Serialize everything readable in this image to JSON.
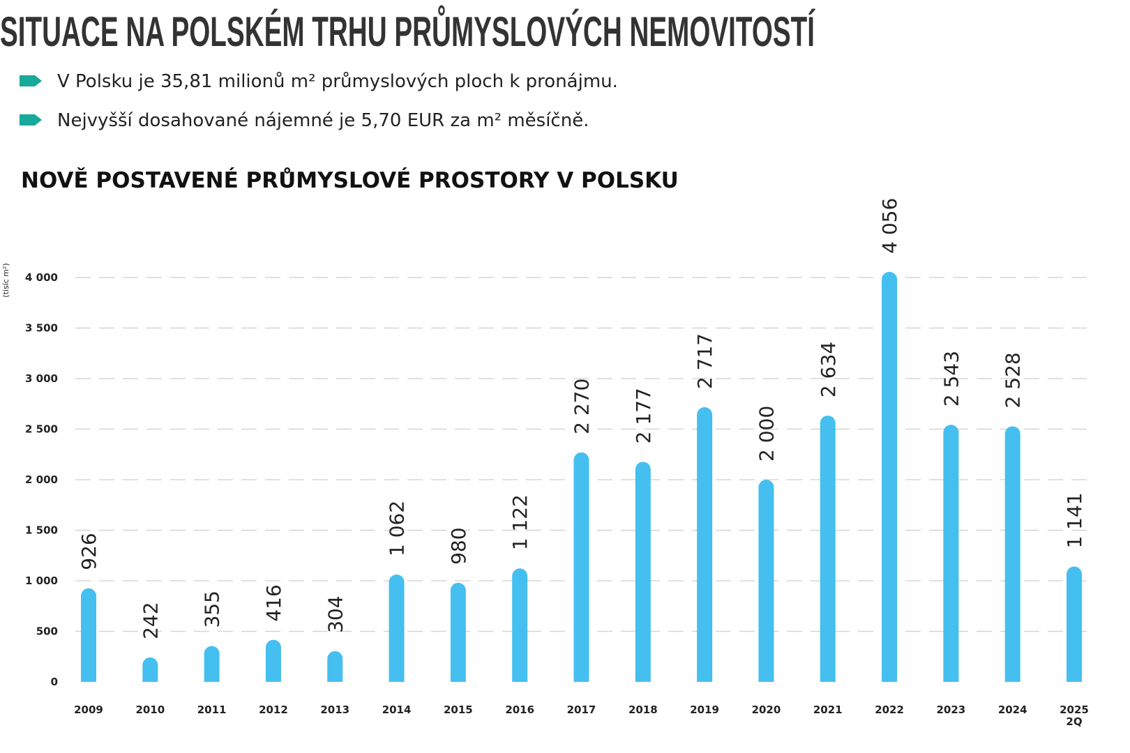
{
  "header": {
    "title": "SITUACE NA POLSKÉM TRHU PRŮMYSLOVÝCH NEMOVITOSTÍ",
    "bullets": [
      "V Polsku je 35,81 milionů m² průmyslových ploch k pronájmu.",
      "Nejvyšší dosahované nájemné je 5,70 EUR za m² měsíčně."
    ]
  },
  "chart_data": {
    "type": "bar",
    "title": "NOVĚ POSTAVENÉ PRŮMYSLOVÉ PROSTORY V POLSKU",
    "y_label": "(tisíc m²)",
    "categories": [
      "2009",
      "2010",
      "2011",
      "2012",
      "2013",
      "2014",
      "2015",
      "2016",
      "2017",
      "2018",
      "2019",
      "2020",
      "2021",
      "2022",
      "2023",
      "2024",
      "2025\n2Q"
    ],
    "values": [
      926,
      242,
      355,
      416,
      304,
      1062,
      980,
      1122,
      2270,
      2177,
      2717,
      2000,
      2634,
      4056,
      2543,
      2528,
      1141
    ],
    "value_labels": [
      "926",
      "242",
      "355",
      "416",
      "304",
      "1 062",
      "980",
      "1 122",
      "2 270",
      "2 177",
      "2 717",
      "2 000",
      "2 634",
      "4 056",
      "2 543",
      "2 528",
      "1 141"
    ],
    "color": "#45bfef",
    "ylim": [
      0,
      4000
    ],
    "yticks": [
      0,
      500,
      {
        "value": 1000,
        "label": "1 000"
      },
      {
        "value": 1500,
        "label": "1 500"
      },
      {
        "value": 2000,
        "label": "2 000"
      },
      {
        "value": 2500,
        "label": "2 500"
      },
      {
        "value": 3000,
        "label": "3 000"
      },
      {
        "value": 3500,
        "label": "3 500"
      },
      {
        "value": 4000,
        "label": "4 000"
      }
    ],
    "grid": true
  }
}
